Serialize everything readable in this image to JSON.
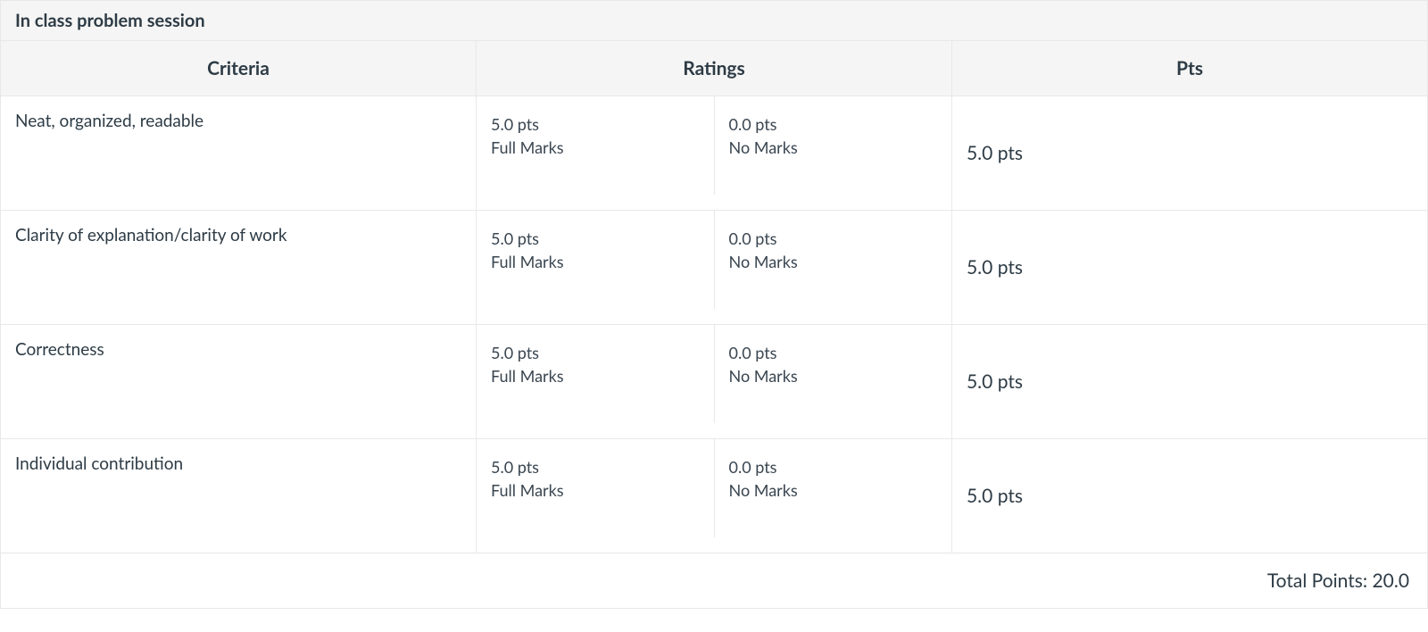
{
  "rubric": {
    "title": "In class problem session",
    "header": {
      "criteria": "Criteria",
      "ratings": "Ratings",
      "pts": "Pts"
    },
    "rows": [
      {
        "criterion": "Neat, organized, readable",
        "ratings": [
          {
            "pts": "5.0 pts",
            "label": "Full Marks"
          },
          {
            "pts": "0.0 pts",
            "label": "No Marks"
          }
        ],
        "points": "5.0 pts"
      },
      {
        "criterion": "Clarity of explanation/clarity of work",
        "ratings": [
          {
            "pts": "5.0 pts",
            "label": "Full Marks"
          },
          {
            "pts": "0.0 pts",
            "label": "No Marks"
          }
        ],
        "points": "5.0 pts"
      },
      {
        "criterion": "Correctness",
        "ratings": [
          {
            "pts": "5.0 pts",
            "label": "Full Marks"
          },
          {
            "pts": "0.0 pts",
            "label": "No Marks"
          }
        ],
        "points": "5.0 pts"
      },
      {
        "criterion": "Individual contribution",
        "ratings": [
          {
            "pts": "5.0 pts",
            "label": "Full Marks"
          },
          {
            "pts": "0.0 pts",
            "label": "No Marks"
          }
        ],
        "points": "5.0 pts"
      }
    ],
    "total_label": "Total Points: 20.0"
  }
}
